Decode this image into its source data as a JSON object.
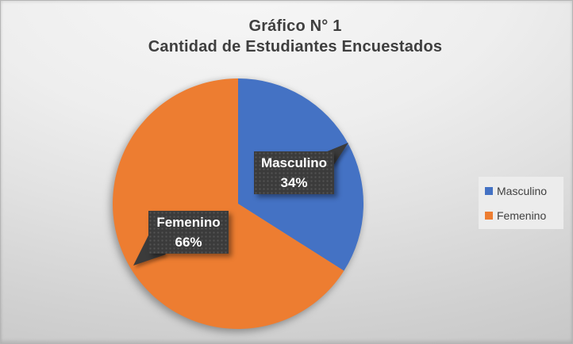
{
  "chart_data": {
    "type": "pie",
    "title": "Gráfico N° 1",
    "subtitle": "Cantidad de Estudiantes Encuestados",
    "categories": [
      "Masculino",
      "Femenino"
    ],
    "values": [
      34,
      66
    ],
    "value_unit": "%",
    "series_colors": [
      "#4472C4",
      "#ED7D31"
    ],
    "start_angle_deg": 0,
    "direction": "clockwise",
    "legend_position": "right",
    "data_labels": [
      {
        "name": "Masculino",
        "value_text": "34%"
      },
      {
        "name": "Femenino",
        "value_text": "66%"
      }
    ],
    "legend": [
      {
        "label": "Masculino",
        "color": "#4472C4"
      },
      {
        "label": "Femenino",
        "color": "#ED7D31"
      }
    ],
    "styles": {
      "title_color": "#3F3F3F",
      "callout_fill": "#3B3B3B",
      "callout_text_color": "#FFFFFF",
      "legend_text_color": "#404040",
      "legend_background": "#ECECEC",
      "canvas_gradient_top": "#F6F6F6",
      "canvas_gradient_bottom": "#C3C3C3"
    }
  }
}
